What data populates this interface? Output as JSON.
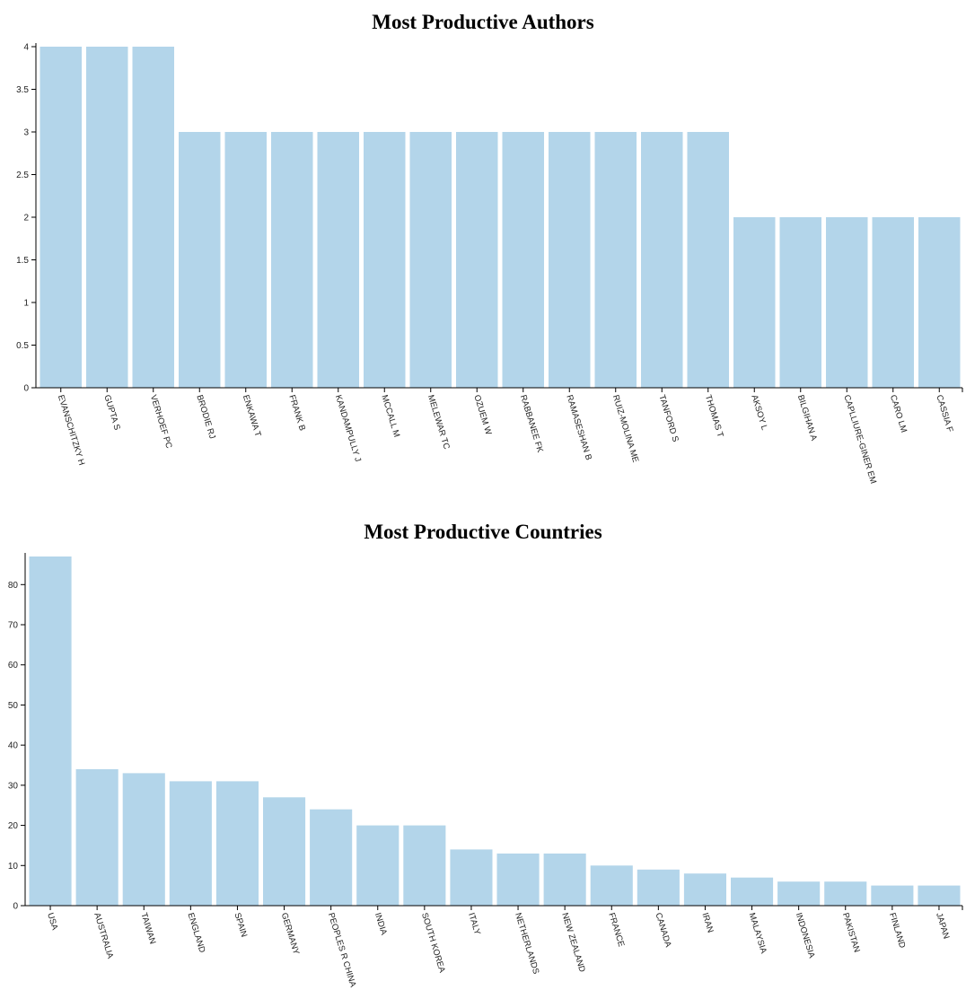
{
  "chart_data": [
    {
      "type": "bar",
      "title": "Most Productive Authors",
      "xlabel": "",
      "ylabel": "",
      "ylim": [
        0,
        4
      ],
      "yticks": [
        0,
        0.5,
        1,
        1.5,
        2,
        2.5,
        3,
        3.5,
        4
      ],
      "categories": [
        "EVANSCHITZKY H",
        "GUPTA S",
        "VERHOEF PC",
        "BRODIE RJ",
        "ENKAWA T",
        "FRANK B",
        "KANDAMPULLY J",
        "MCCALL M",
        "MELEWAR TC",
        "OZUEM W",
        "RABBANEE FK",
        "RAMASESHAN B",
        "RUIZ-MOLINA ME",
        "TANFORD S",
        "THOMAS T",
        "AKSOY L",
        "BILGIHAN A",
        "CAPLLIURE-GINER EM",
        "CARO LM",
        "CASSIA F"
      ],
      "values": [
        4,
        4,
        4,
        3,
        3,
        3,
        3,
        3,
        3,
        3,
        3,
        3,
        3,
        3,
        3,
        2,
        2,
        2,
        2,
        2
      ],
      "grid": false,
      "color": "#b3d5ea"
    },
    {
      "type": "bar",
      "title": "Most Productive Countries",
      "xlabel": "",
      "ylabel": "",
      "ylim": [
        0,
        87
      ],
      "yticks": [
        0,
        10,
        20,
        30,
        40,
        50,
        60,
        70,
        80
      ],
      "categories": [
        "USA",
        "AUSTRALIA",
        "TAIWAN",
        "ENGLAND",
        "SPAIN",
        "GERMANY",
        "PEOPLES R CHINA",
        "INDIA",
        "SOUTH KOREA",
        "ITALY",
        "NETHERLANDS",
        "NEW ZEALAND",
        "FRANCE",
        "CANADA",
        "IRAN",
        "MALAYSIA",
        "INDONESIA",
        "PAKISTAN",
        "FINLAND",
        "JAPAN"
      ],
      "values": [
        87,
        34,
        33,
        31,
        31,
        27,
        24,
        20,
        20,
        14,
        13,
        13,
        10,
        9,
        8,
        7,
        6,
        6,
        5,
        5
      ],
      "grid": false,
      "color": "#b3d5ea"
    }
  ]
}
